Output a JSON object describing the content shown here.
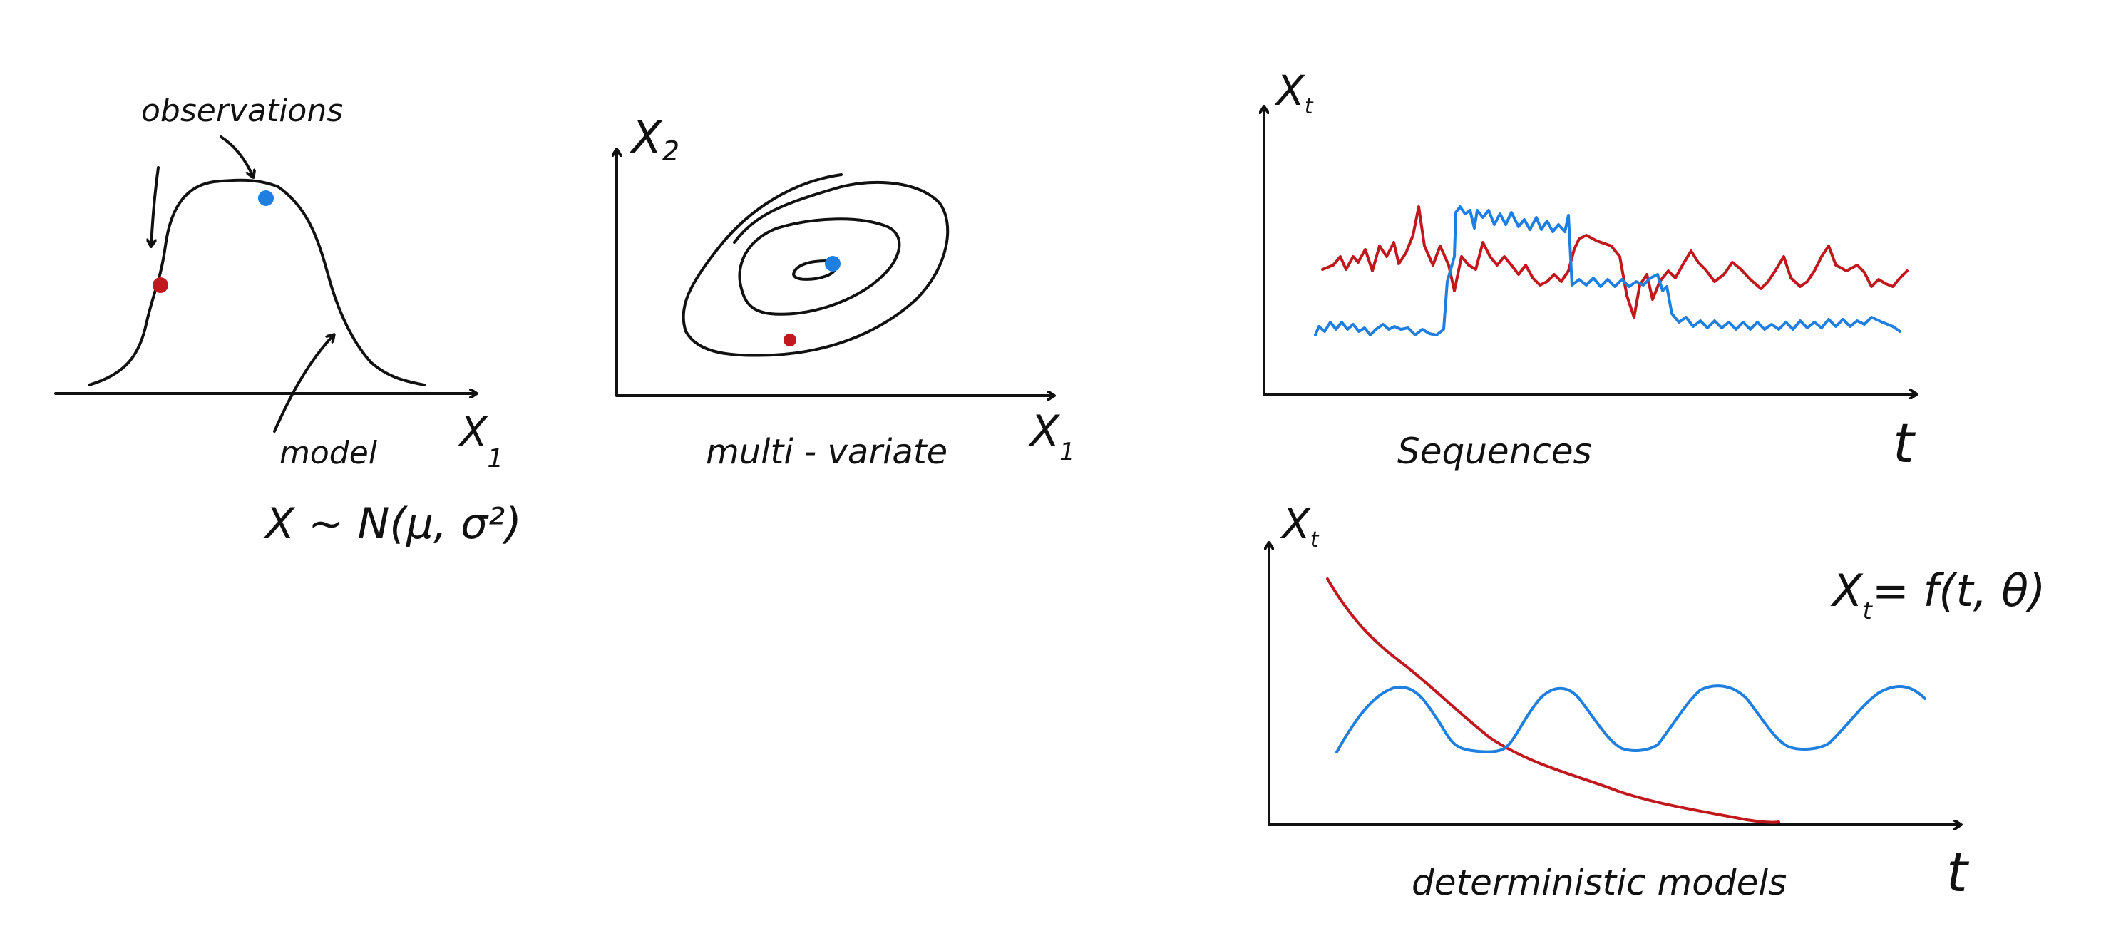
{
  "colors": {
    "ink": "#111111",
    "red": "#c0181c",
    "blue": "#1f7fe0"
  },
  "panel_gaussian": {
    "observations_label": "observations",
    "model_label": "model",
    "axis_x_label": "X",
    "axis_x_sub": "1",
    "formula": "X ~ N(μ, σ²)"
  },
  "panel_multivariate": {
    "axis_y_label": "X",
    "axis_y_sub": "2",
    "axis_x_label": "X",
    "axis_x_sub": "1",
    "caption": "multi - variate"
  },
  "panel_sequences": {
    "axis_y_label": "X",
    "axis_y_sub": "t",
    "axis_x_label": "t",
    "caption": "Sequences"
  },
  "panel_deterministic": {
    "axis_y_label": "X",
    "axis_y_sub": "t",
    "axis_x_label": "t",
    "caption": "deterministic models",
    "formula_lhs": "X",
    "formula_sub": "t",
    "formula_rhs": "= f(t, θ)"
  }
}
